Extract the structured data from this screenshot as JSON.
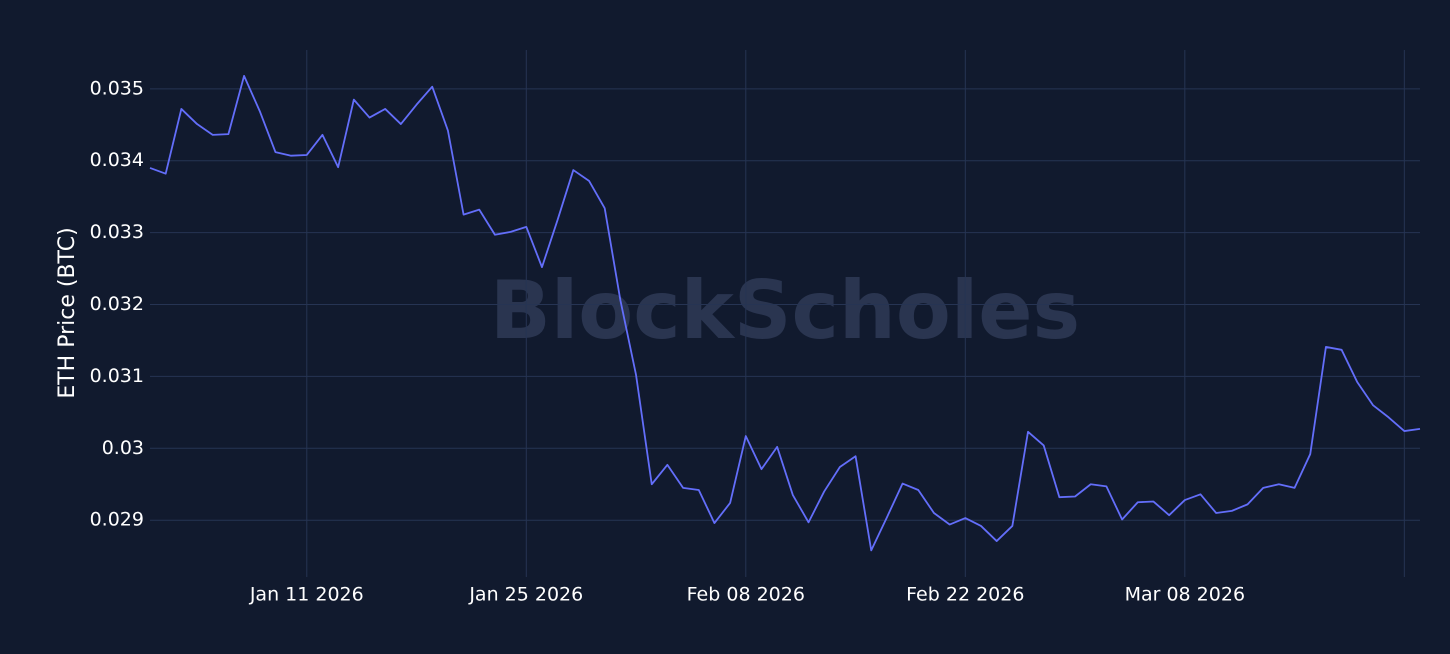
{
  "chart_data": {
    "type": "line",
    "y_label": "ETH Price (BTC)",
    "watermark": "BlockScholes",
    "color": "#636efa",
    "grid": true,
    "x": [
      "2026-01-01",
      "2026-01-02",
      "2026-01-03",
      "2026-01-04",
      "2026-01-05",
      "2026-01-06",
      "2026-01-07",
      "2026-01-08",
      "2026-01-09",
      "2026-01-10",
      "2026-01-11",
      "2026-01-12",
      "2026-01-13",
      "2026-01-14",
      "2026-01-15",
      "2026-01-16",
      "2026-01-17",
      "2026-01-18",
      "2026-01-19",
      "2026-01-20",
      "2026-01-21",
      "2026-01-22",
      "2026-01-23",
      "2026-01-24",
      "2026-01-25",
      "2026-01-26",
      "2026-01-27",
      "2026-01-28",
      "2026-01-29",
      "2026-01-30",
      "2026-01-31",
      "2026-02-01",
      "2026-02-02",
      "2026-02-03",
      "2026-02-04",
      "2026-02-05",
      "2026-02-06",
      "2026-02-07",
      "2026-02-08",
      "2026-02-09",
      "2026-02-10",
      "2026-02-11",
      "2026-02-12",
      "2026-02-13",
      "2026-02-14",
      "2026-02-15",
      "2026-02-16",
      "2026-02-17",
      "2026-02-18",
      "2026-02-19",
      "2026-02-20",
      "2026-02-21",
      "2026-02-22",
      "2026-02-23",
      "2026-02-24",
      "2026-02-25",
      "2026-02-26",
      "2026-02-27",
      "2026-02-28",
      "2026-03-01",
      "2026-03-02",
      "2026-03-03",
      "2026-03-04",
      "2026-03-05",
      "2026-03-06",
      "2026-03-07",
      "2026-03-08",
      "2026-03-09",
      "2026-03-10",
      "2026-03-11",
      "2026-03-12",
      "2026-03-13",
      "2026-03-14",
      "2026-03-15",
      "2026-03-16",
      "2026-03-17",
      "2026-03-18",
      "2026-03-19",
      "2026-03-20",
      "2026-03-21",
      "2026-03-22",
      "2026-03-23"
    ],
    "values": [
      0.0339,
      0.03382,
      0.03472,
      0.03451,
      0.03436,
      0.03437,
      0.03518,
      0.03469,
      0.03412,
      0.03407,
      0.03408,
      0.03436,
      0.03391,
      0.03485,
      0.0346,
      0.03472,
      0.03451,
      0.03478,
      0.03503,
      0.03442,
      0.03325,
      0.03332,
      0.03297,
      0.03301,
      0.03308,
      0.03252,
      0.03318,
      0.03387,
      0.03372,
      0.03334,
      0.03206,
      0.03102,
      0.0295,
      0.02977,
      0.02945,
      0.02942,
      0.02896,
      0.02924,
      0.03017,
      0.02971,
      0.03002,
      0.02935,
      0.02897,
      0.0294,
      0.02974,
      0.02989,
      0.02858,
      0.02904,
      0.02951,
      0.02942,
      0.0291,
      0.02894,
      0.02903,
      0.02892,
      0.02871,
      0.02892,
      0.03023,
      0.03004,
      0.02932,
      0.02933,
      0.0295,
      0.02947,
      0.02901,
      0.02925,
      0.02926,
      0.02907,
      0.02928,
      0.02936,
      0.0291,
      0.02913,
      0.02922,
      0.02945,
      0.0295,
      0.02945,
      0.02992,
      0.03141,
      0.03137,
      0.03092,
      0.0306,
      0.03043,
      0.03024,
      0.03027
    ],
    "xlim": [
      "2026-01-01",
      "2026-03-23"
    ],
    "xticks": [
      {
        "value": "2026-01-11",
        "label": "Jan 11 2026"
      },
      {
        "value": "2026-01-25",
        "label": "Jan 25 2026"
      },
      {
        "value": "2026-02-08",
        "label": "Feb 08 2026"
      },
      {
        "value": "2026-02-22",
        "label": "Feb 22 2026"
      },
      {
        "value": "2026-03-08",
        "label": "Mar 08 2026"
      },
      {
        "value": "2026-03-22",
        "label": null
      }
    ],
    "ylim": [
      0.02821,
      0.03554
    ],
    "yticks": [
      0.029,
      0.03,
      0.031,
      0.032,
      0.033,
      0.034,
      0.035
    ]
  }
}
